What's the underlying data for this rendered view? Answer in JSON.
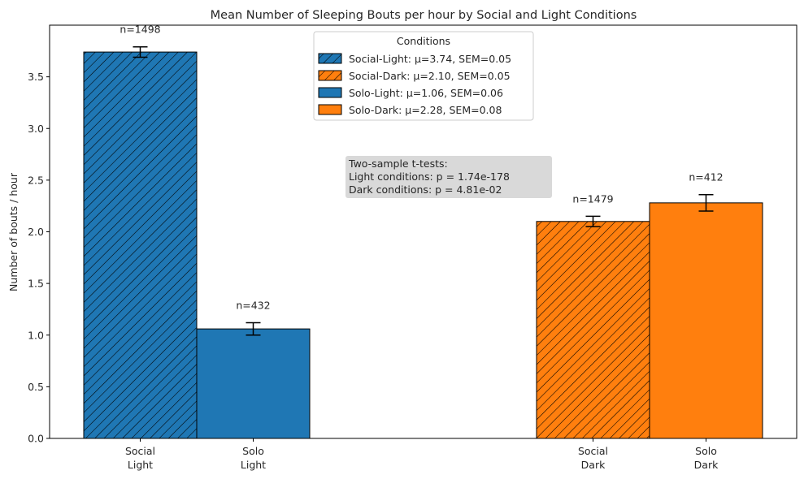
{
  "chart_data": {
    "type": "bar",
    "title": "Mean Number of Sleeping Bouts per hour by Social and Light Conditions",
    "ylabel": "Number of bouts / hour",
    "xlabel": "",
    "ylim": [
      0,
      4.0
    ],
    "yticks": [
      "0.0",
      "0.5",
      "1.0",
      "1.5",
      "2.0",
      "2.5",
      "3.0",
      "3.5"
    ],
    "grid": false,
    "bars": [
      {
        "key": "social_light",
        "label_line1": "Social",
        "label_line2": "Light",
        "value": 3.74,
        "sem": 0.05,
        "n_label": "n=1498",
        "color": "#1f77b4",
        "hatched": true
      },
      {
        "key": "solo_light",
        "label_line1": "Solo",
        "label_line2": "Light",
        "value": 1.06,
        "sem": 0.06,
        "n_label": "n=432",
        "color": "#1f77b4",
        "hatched": false
      },
      {
        "key": "social_dark",
        "label_line1": "Social",
        "label_line2": "Dark",
        "value": 2.1,
        "sem": 0.05,
        "n_label": "n=1479",
        "color": "#ff7f0e",
        "hatched": true
      },
      {
        "key": "solo_dark",
        "label_line1": "Solo",
        "label_line2": "Dark",
        "value": 2.28,
        "sem": 0.08,
        "n_label": "n=412",
        "color": "#ff7f0e",
        "hatched": false
      }
    ],
    "legend": {
      "title": "Conditions",
      "placement": "top-center",
      "entries": [
        {
          "label": "Social-Light: μ=3.74, SEM=0.05",
          "color": "#1f77b4",
          "hatched": true
        },
        {
          "label": "Social-Dark: μ=2.10, SEM=0.05",
          "color": "#ff7f0e",
          "hatched": true
        },
        {
          "label": "Solo-Light: μ=1.06, SEM=0.06",
          "color": "#1f77b4",
          "hatched": false
        },
        {
          "label": "Solo-Dark: μ=2.28, SEM=0.08",
          "color": "#ff7f0e",
          "hatched": false
        }
      ]
    },
    "annotation": {
      "line1": "Two-sample t-tests:",
      "line2": "Light conditions: p = 1.74e-178",
      "line3": "Dark conditions: p = 4.81e-02"
    }
  }
}
